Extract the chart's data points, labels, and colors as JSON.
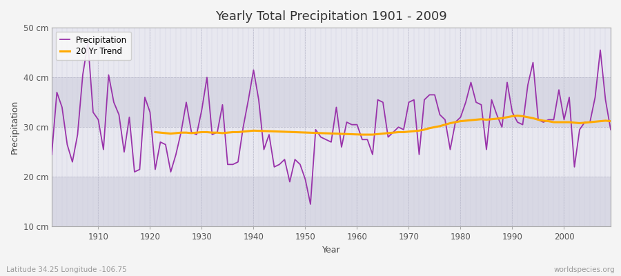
{
  "title": "Yearly Total Precipitation 1901 - 2009",
  "xlabel": "Year",
  "ylabel": "Precipitation",
  "bottom_left": "Latitude 34.25 Longitude -106.75",
  "bottom_right": "worldspecies.org",
  "precipitation_color": "#9933aa",
  "trend_color": "#ffaa00",
  "fig_bg_color": "#f0f0f0",
  "plot_bg_color": "#e0e0e8",
  "band_light": "#e8e8f0",
  "band_dark": "#d8d8e4",
  "grid_color": "#ffffff",
  "ylim": [
    10,
    50
  ],
  "xlim": [
    1901,
    2009
  ],
  "yticks": [
    10,
    20,
    30,
    40,
    50
  ],
  "ytick_labels": [
    "10 cm",
    "20 cm",
    "30 cm",
    "40 cm",
    "50 cm"
  ],
  "xticks": [
    1910,
    1920,
    1930,
    1940,
    1950,
    1960,
    1970,
    1980,
    1990,
    2000
  ],
  "years": [
    1901,
    1902,
    1903,
    1904,
    1905,
    1906,
    1907,
    1908,
    1909,
    1910,
    1911,
    1912,
    1913,
    1914,
    1915,
    1916,
    1917,
    1918,
    1919,
    1920,
    1921,
    1922,
    1923,
    1924,
    1925,
    1926,
    1927,
    1928,
    1929,
    1930,
    1931,
    1932,
    1933,
    1934,
    1935,
    1936,
    1937,
    1938,
    1939,
    1940,
    1941,
    1942,
    1943,
    1944,
    1945,
    1946,
    1947,
    1948,
    1949,
    1950,
    1951,
    1952,
    1953,
    1954,
    1955,
    1956,
    1957,
    1958,
    1959,
    1960,
    1961,
    1962,
    1963,
    1964,
    1965,
    1966,
    1967,
    1968,
    1969,
    1970,
    1971,
    1972,
    1973,
    1974,
    1975,
    1976,
    1977,
    1978,
    1979,
    1980,
    1981,
    1982,
    1983,
    1984,
    1985,
    1986,
    1987,
    1988,
    1989,
    1990,
    1991,
    1992,
    1993,
    1994,
    1995,
    1996,
    1997,
    1998,
    1999,
    2000,
    2001,
    2002,
    2003,
    2004,
    2005,
    2006,
    2007,
    2008,
    2009
  ],
  "precip": [
    24.5,
    37.0,
    34.0,
    26.5,
    23.0,
    28.5,
    40.5,
    47.0,
    33.0,
    31.5,
    25.5,
    40.5,
    35.0,
    32.5,
    25.0,
    32.0,
    21.0,
    21.5,
    36.0,
    33.0,
    21.5,
    27.0,
    26.5,
    21.0,
    24.5,
    29.0,
    35.0,
    29.0,
    28.5,
    33.5,
    40.0,
    28.5,
    29.0,
    34.5,
    22.5,
    22.5,
    23.0,
    30.0,
    35.5,
    41.5,
    35.5,
    25.5,
    28.5,
    22.0,
    22.5,
    23.5,
    19.0,
    23.5,
    22.5,
    19.5,
    14.5,
    29.5,
    28.0,
    27.5,
    27.0,
    34.0,
    26.0,
    31.0,
    30.5,
    30.5,
    27.5,
    27.5,
    24.5,
    35.5,
    35.0,
    28.0,
    29.0,
    30.0,
    29.5,
    35.0,
    35.5,
    24.5,
    35.5,
    36.5,
    36.5,
    32.5,
    31.5,
    25.5,
    31.0,
    32.0,
    35.0,
    39.0,
    35.0,
    34.5,
    25.5,
    35.5,
    32.5,
    30.0,
    39.0,
    33.0,
    31.0,
    30.5,
    38.5,
    43.0,
    31.5,
    31.0,
    31.5,
    31.5,
    37.5,
    31.5,
    36.0,
    22.0,
    29.5,
    31.0,
    31.0,
    36.0,
    45.5,
    35.5,
    29.5
  ],
  "trend_years": [
    1921,
    1922,
    1923,
    1924,
    1925,
    1926,
    1927,
    1928,
    1929,
    1930,
    1931,
    1932,
    1933,
    1934,
    1935,
    1936,
    1937,
    1938,
    1939,
    1940,
    1961,
    1962,
    1963,
    1964,
    1965,
    1966,
    1967,
    1968,
    1969,
    1970,
    1971,
    1972,
    1973,
    1974,
    1975,
    1976,
    1977,
    1978,
    1979,
    1980,
    1981,
    1982,
    1983,
    1984,
    1985,
    1986,
    1987,
    1988,
    1989,
    1990,
    1991,
    1992,
    1993,
    1994,
    1995,
    1996,
    1997,
    1998,
    1999,
    2000,
    2001,
    2002,
    2003,
    2004,
    2005,
    2006,
    2007,
    2008,
    2009
  ],
  "trend_values": [
    29.0,
    28.9,
    28.8,
    28.7,
    28.8,
    28.9,
    28.9,
    28.8,
    28.9,
    29.0,
    29.0,
    28.9,
    28.9,
    28.8,
    28.9,
    29.0,
    29.0,
    29.1,
    29.2,
    29.3,
    28.5,
    28.5,
    28.5,
    28.6,
    28.7,
    28.8,
    28.9,
    29.0,
    29.0,
    29.1,
    29.2,
    29.3,
    29.5,
    29.8,
    30.0,
    30.2,
    30.5,
    30.8,
    31.0,
    31.2,
    31.3,
    31.4,
    31.5,
    31.6,
    31.5,
    31.6,
    31.7,
    31.8,
    32.0,
    32.2,
    32.3,
    32.2,
    32.0,
    31.8,
    31.5,
    31.3,
    31.2,
    31.0,
    31.0,
    31.0,
    31.0,
    30.9,
    30.8,
    30.9,
    31.0,
    31.1,
    31.2,
    31.3,
    31.2
  ]
}
